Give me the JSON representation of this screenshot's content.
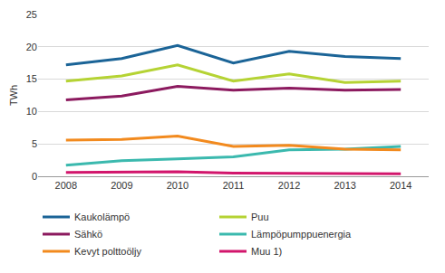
{
  "chart_data": {
    "type": "line",
    "y_label": "TWh",
    "categories": [
      "2008",
      "2009",
      "2010",
      "2011",
      "2012",
      "2013",
      "2014"
    ],
    "series": [
      {
        "name": "Kaukolämpö",
        "color": "#1b6497",
        "values": [
          17.2,
          18.2,
          20.2,
          17.5,
          19.3,
          18.5,
          18.2
        ]
      },
      {
        "name": "Puu",
        "color": "#b5d334",
        "values": [
          14.7,
          15.5,
          17.2,
          14.7,
          15.8,
          14.5,
          14.7
        ]
      },
      {
        "name": "Sähkö",
        "color": "#8c1a5f",
        "values": [
          11.8,
          12.4,
          13.9,
          13.3,
          13.6,
          13.3,
          13.4
        ]
      },
      {
        "name": "Lämpöpumppuenergia",
        "color": "#3bb9ae",
        "values": [
          1.7,
          2.4,
          2.7,
          3.0,
          4.1,
          4.2,
          4.6
        ]
      },
      {
        "name": "Kevyt polttoöljy",
        "color": "#f28a1e",
        "values": [
          5.6,
          5.7,
          6.2,
          4.6,
          4.8,
          4.2,
          4.1
        ]
      },
      {
        "name": "Muu 1)",
        "color": "#d2166c",
        "values": [
          0.6,
          0.6,
          0.7,
          0.5,
          0.5,
          0.4,
          0.4
        ]
      }
    ],
    "ylim": [
      0,
      25
    ],
    "yticks": [
      0,
      5,
      10,
      15,
      20,
      25
    ],
    "grid": true,
    "legend": "bottom"
  }
}
